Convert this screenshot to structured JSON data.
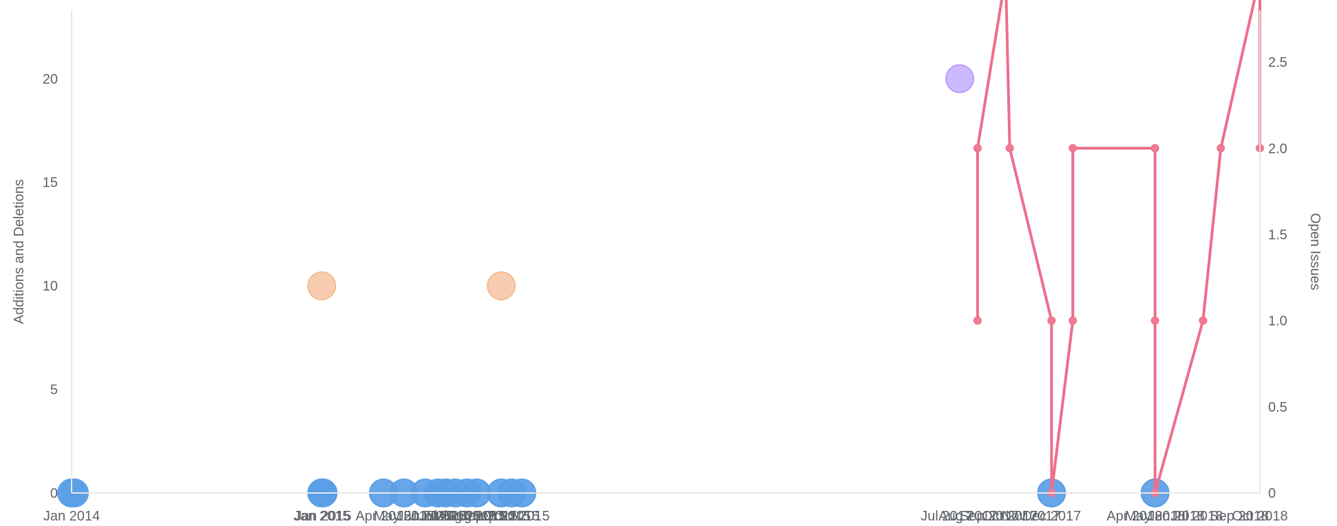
{
  "chart_data": {
    "type": "scatter",
    "left_axis": {
      "title": "Additions and Deletions",
      "range": [
        0,
        23.3
      ],
      "ticks": [
        0,
        5,
        10,
        15,
        20
      ]
    },
    "right_axis": {
      "title": "Open Issues",
      "range": [
        0,
        2.8
      ],
      "ticks": [
        0,
        0.5,
        1.0,
        1.5,
        2.0,
        2.5
      ],
      "tick_labels": [
        "0",
        "0.5",
        "1.0",
        "1.5",
        "2.0",
        "2.5"
      ]
    },
    "x_axis": {
      "range": [
        "2014-01-01",
        "2018-10-01"
      ],
      "tick_labels": [
        {
          "date": "2014-01-01",
          "label": "Jan 2014"
        },
        {
          "date": "2015-01-01",
          "label": "Jan 2015"
        },
        {
          "date": "2015-01-03",
          "label": "Jan 2015"
        },
        {
          "date": "2015-04-01",
          "label": "Apr 2015"
        },
        {
          "date": "2015-05-01",
          "label": "May 2015"
        },
        {
          "date": "2015-06-01",
          "label": "Jun 2015"
        },
        {
          "date": "2015-06-20",
          "label": "Jun 2015"
        },
        {
          "date": "2015-07-01",
          "label": "Jul 2015"
        },
        {
          "date": "2015-07-15",
          "label": "Jul 2015"
        },
        {
          "date": "2015-08-01",
          "label": "Aug 2015"
        },
        {
          "date": "2015-08-15",
          "label": "Aug 2015"
        },
        {
          "date": "2015-09-01",
          "label": "Sep 2015"
        },
        {
          "date": "2015-09-20",
          "label": "Sep 2015"
        },
        {
          "date": "2015-10-05",
          "label": "Oct 2015"
        },
        {
          "date": "2015-10-20",
          "label": "Oct 2015"
        },
        {
          "date": "2017-07-01",
          "label": "Jul 2017"
        },
        {
          "date": "2017-08-01",
          "label": "Aug 2017"
        },
        {
          "date": "2017-09-01",
          "label": "Sep 2017"
        },
        {
          "date": "2017-10-01",
          "label": "Oct 2017"
        },
        {
          "date": "2017-11-01",
          "label": "Nov 2017"
        },
        {
          "date": "2017-12-01",
          "label": "Dec 2017"
        },
        {
          "date": "2018-04-01",
          "label": "Apr 2018"
        },
        {
          "date": "2018-05-01",
          "label": "May 2018"
        },
        {
          "date": "2018-06-01",
          "label": "Jun 2018"
        },
        {
          "date": "2018-07-01",
          "label": "Jul 2018"
        },
        {
          "date": "2018-09-01",
          "label": "Sep 2018"
        },
        {
          "date": "2018-10-01",
          "label": "Oct 2018"
        }
      ]
    },
    "series": [
      {
        "name": "",
        "axis": "left",
        "type": "scatter",
        "color": "#5a9ee6",
        "points": [
          {
            "x": "2014-01-01",
            "y": 0
          },
          {
            "x": "2014-01-05",
            "y": 0
          },
          {
            "x": "2015-01-01",
            "y": 0
          },
          {
            "x": "2015-01-03",
            "y": 0
          },
          {
            "x": "2015-04-01",
            "y": 0
          },
          {
            "x": "2015-05-01",
            "y": 0
          },
          {
            "x": "2015-06-01",
            "y": 0
          },
          {
            "x": "2015-06-20",
            "y": 0
          },
          {
            "x": "2015-07-01",
            "y": 0
          },
          {
            "x": "2015-07-15",
            "y": 0
          },
          {
            "x": "2015-08-01",
            "y": 0
          },
          {
            "x": "2015-08-15",
            "y": 0
          },
          {
            "x": "2015-09-20",
            "y": 0
          },
          {
            "x": "2015-10-05",
            "y": 0
          },
          {
            "x": "2015-10-20",
            "y": 0
          },
          {
            "x": "2017-12-01",
            "y": 0
          },
          {
            "x": "2018-05-01",
            "y": 0
          }
        ]
      },
      {
        "name": "",
        "axis": "left",
        "type": "scatter",
        "color": "#f4c79b",
        "points": [
          {
            "x": "2015-01-01",
            "y": 10
          },
          {
            "x": "2015-09-20",
            "y": 10
          }
        ]
      },
      {
        "name": "",
        "axis": "left",
        "type": "scatter",
        "color": "#c7b4ff",
        "points": [
          {
            "x": "2017-07-20",
            "y": 20
          }
        ]
      },
      {
        "name": "",
        "axis": "right",
        "type": "line",
        "color": "#ee6e8b",
        "points": [
          {
            "x": "2017-08-15",
            "y": 1.0
          },
          {
            "x": "2017-08-15",
            "y": 2.0
          },
          {
            "x": "2017-09-25",
            "y": 3.0
          },
          {
            "x": "2017-10-01",
            "y": 2.0
          },
          {
            "x": "2017-12-01",
            "y": 1.0
          },
          {
            "x": "2017-12-01",
            "y": 0
          },
          {
            "x": "2018-01-01",
            "y": 1.0
          },
          {
            "x": "2018-01-01",
            "y": 2.0
          },
          {
            "x": "2018-05-01",
            "y": 2.0
          },
          {
            "x": "2018-05-01",
            "y": 1.0
          },
          {
            "x": "2018-05-01",
            "y": 0
          },
          {
            "x": "2018-07-10",
            "y": 1.0
          },
          {
            "x": "2018-07-10",
            "y": 1.0
          },
          {
            "x": "2018-08-05",
            "y": 2.0
          },
          {
            "x": "2018-10-01",
            "y": 3.0
          },
          {
            "x": "2018-10-01",
            "y": 2.0
          }
        ]
      }
    ]
  }
}
